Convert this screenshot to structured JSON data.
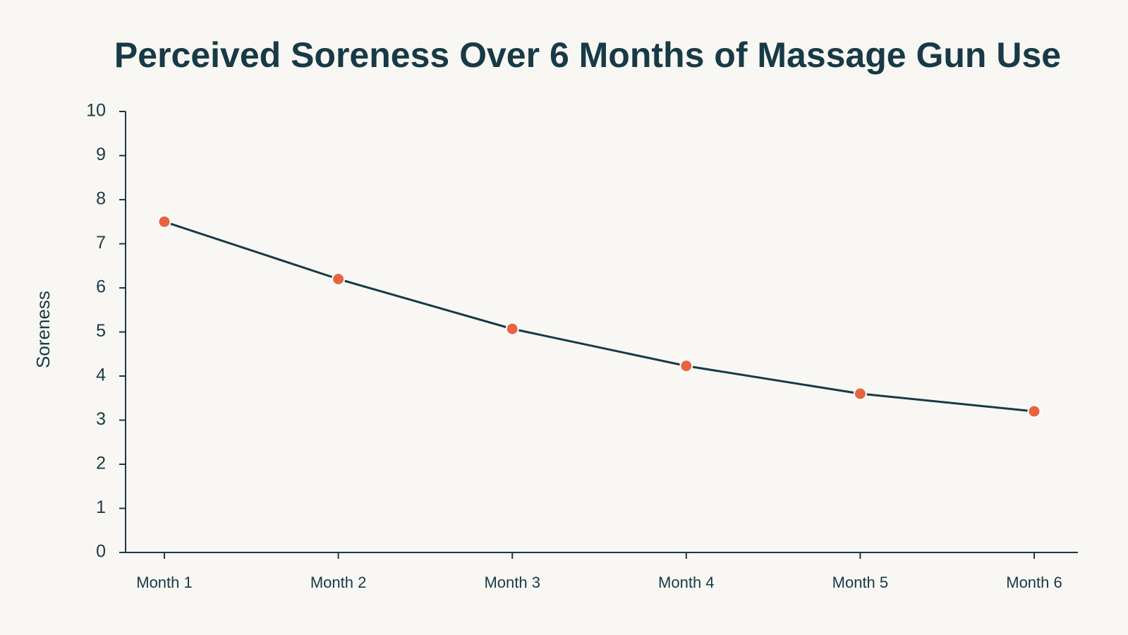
{
  "colors": {
    "background": "#f9f7f3",
    "text": "#173a46",
    "axis": "#173a46",
    "line": "#173a46",
    "marker": "#e7643f",
    "marker_stroke": "#ffffff"
  },
  "chart_data": {
    "type": "line",
    "title": "Perceived Soreness Over 6 Months of Massage Gun Use",
    "xlabel": "",
    "ylabel": "Soreness",
    "categories": [
      "Month 1",
      "Month 2",
      "Month 3",
      "Month 4",
      "Month 5",
      "Month 6"
    ],
    "series": [
      {
        "values": [
          7.5,
          6.2,
          5.07,
          4.23,
          3.6,
          3.2
        ]
      }
    ],
    "ylim": [
      0,
      10
    ],
    "yticks": [
      "0",
      "1",
      "2",
      "3",
      "4",
      "5",
      "6",
      "7",
      "8",
      "9",
      "10"
    ],
    "grid": false,
    "legend": "none",
    "markers": true
  }
}
